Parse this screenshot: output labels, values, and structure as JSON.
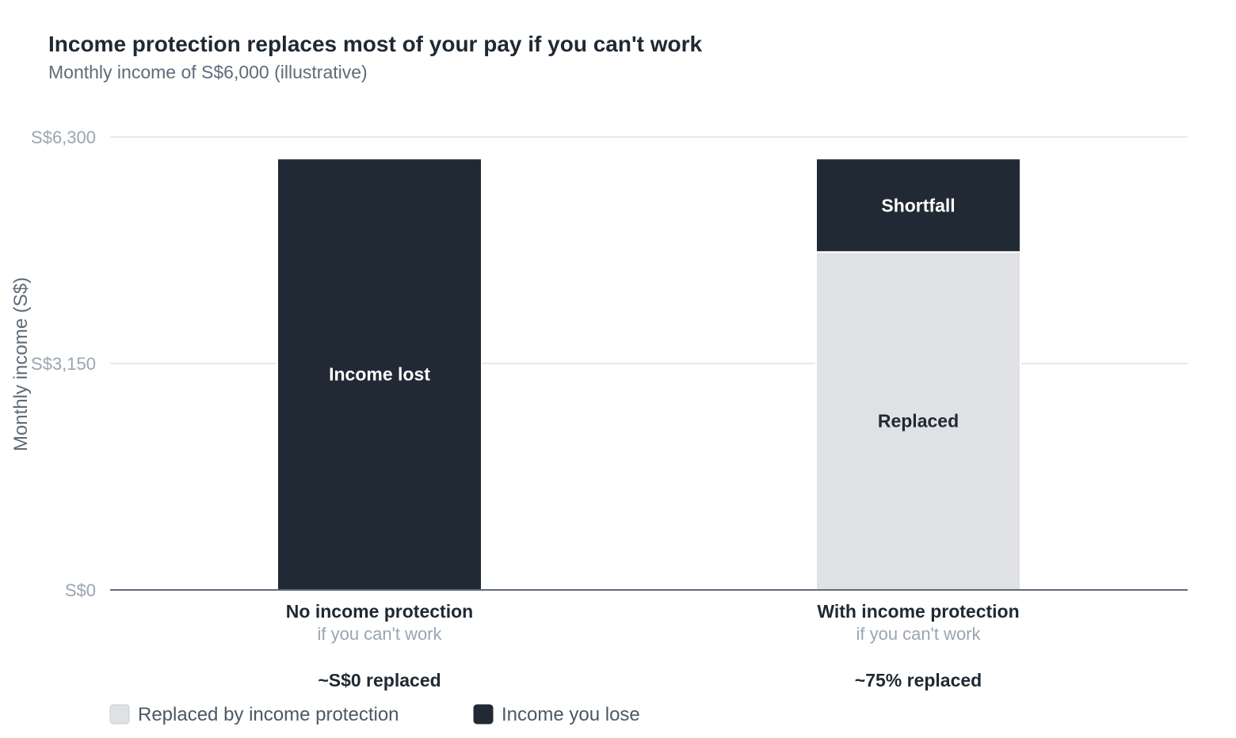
{
  "chart_data": {
    "type": "bar",
    "stacked": true,
    "title": "Income protection replaces most of your pay if you can't work",
    "subtitle": "Monthly income of S$6,000 (illustrative)",
    "ylabel": "Monthly income (S$)",
    "xlabel": "",
    "ylim": [
      0,
      6300
    ],
    "yticks": [
      0,
      3150,
      6300
    ],
    "ytick_labels": [
      "S$0",
      "S$3,150",
      "S$6,300"
    ],
    "grid": true,
    "legend_position": "bottom-left",
    "categories": [
      "No income protection",
      "With income protection"
    ],
    "category_sublabels": [
      "if you can't work",
      "if you can't work"
    ],
    "category_summaries": [
      "~S$0 replaced",
      "~75% replaced"
    ],
    "series": [
      {
        "name": "Replaced by income protection",
        "color": "#dfe1e5",
        "label_color": "#1f2933",
        "values": [
          0,
          4700
        ],
        "segment_labels": [
          "",
          "Replaced"
        ]
      },
      {
        "name": "Income you lose",
        "color": "#212a34",
        "label_color": "#ffffff",
        "values": [
          6000,
          1300
        ],
        "segment_labels": [
          "Income lost",
          "Shortfall"
        ]
      }
    ]
  }
}
